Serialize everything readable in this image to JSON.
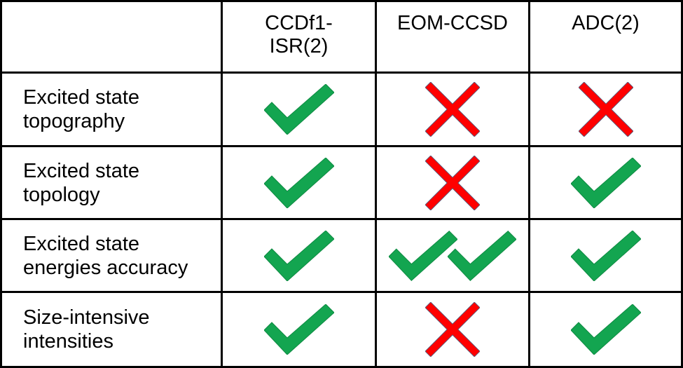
{
  "table": {
    "columns": [
      {
        "label_line1": "CCDf1-",
        "label_line2": "ISR(2)"
      },
      {
        "label_line1": "EOM-CCSD",
        "label_line2": ""
      },
      {
        "label_line1": "ADC(2)",
        "label_line2": ""
      }
    ],
    "rows": [
      {
        "label_line1": "Excited state",
        "label_line2": "topography",
        "marks": [
          "check",
          "cross",
          "cross"
        ]
      },
      {
        "label_line1": "Excited state",
        "label_line2": "topology",
        "marks": [
          "check",
          "cross",
          "check"
        ]
      },
      {
        "label_line1": "Excited state",
        "label_line2": "energies accuracy",
        "marks": [
          "check",
          "double-check",
          "check"
        ]
      },
      {
        "label_line1": "Size-intensive",
        "label_line2": "intensities",
        "marks": [
          "check",
          "cross",
          "check"
        ]
      }
    ]
  },
  "colors": {
    "check": "#13a550",
    "cross": "#ff0000",
    "cross_outline": "#5a5a7a"
  },
  "icons": {
    "check": "checkmark-icon",
    "cross": "cross-icon"
  }
}
